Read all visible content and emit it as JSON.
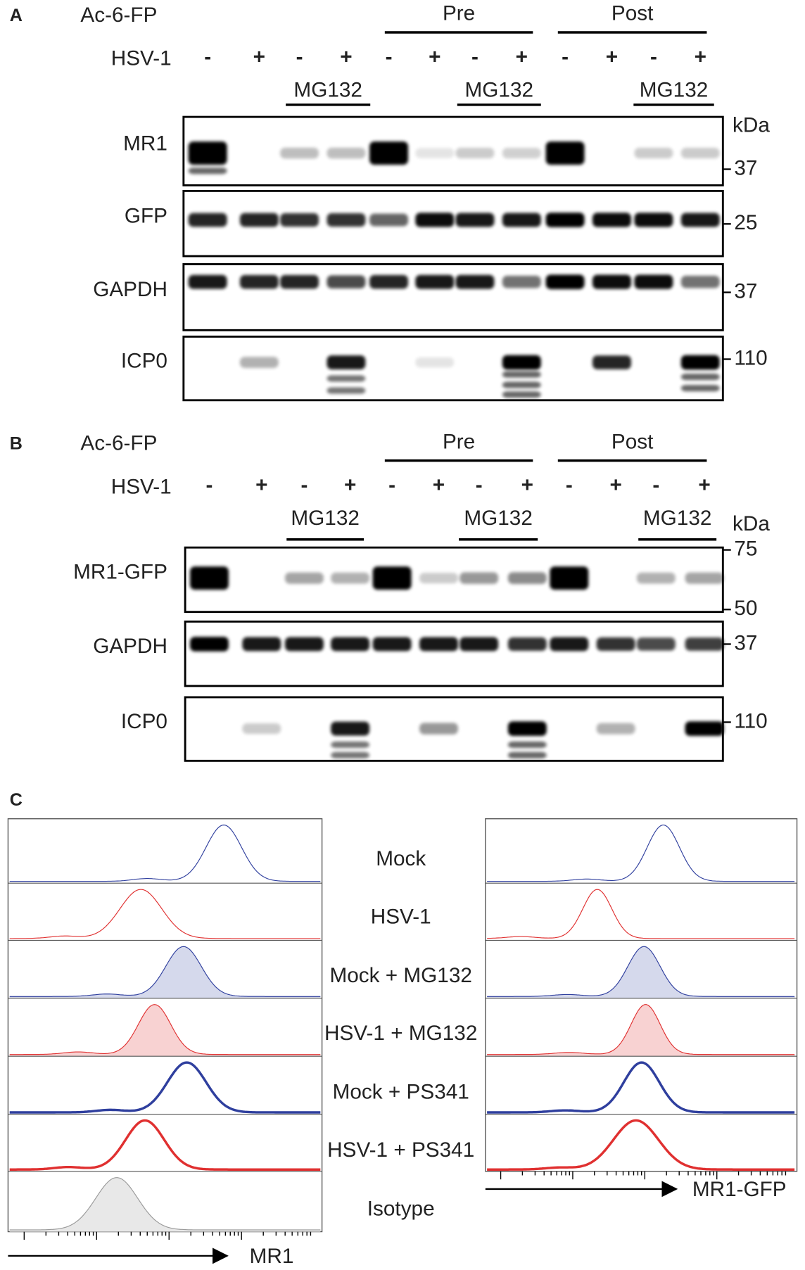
{
  "panels": [
    {
      "label": "A",
      "treatment": "Ac-6-FP",
      "groups": [
        "Pre",
        "Post"
      ],
      "infection": "HSV-1",
      "signs": [
        "-",
        "+",
        "-",
        "+",
        "-",
        "+",
        "-",
        "+",
        "-",
        "+",
        "-",
        "+"
      ],
      "drug_labels": [
        "MG132",
        "MG132",
        "MG132"
      ],
      "unit": "kDa",
      "blots": [
        {
          "name": "MR1",
          "markers": [
            "37"
          ]
        },
        {
          "name": "GFP",
          "markers": [
            "25"
          ]
        },
        {
          "name": "GAPDH",
          "markers": [
            "37"
          ]
        },
        {
          "name": "ICP0",
          "markers": [
            "110"
          ]
        }
      ]
    },
    {
      "label": "B",
      "treatment": "Ac-6-FP",
      "groups": [
        "Pre",
        "Post"
      ],
      "infection": "HSV-1",
      "signs": [
        "-",
        "+",
        "-",
        "+",
        "-",
        "+",
        "-",
        "+",
        "-",
        "+",
        "-",
        "+"
      ],
      "drug_labels": [
        "MG132",
        "MG132",
        "MG132"
      ],
      "unit": "kDa",
      "blots": [
        {
          "name": "MR1-GFP",
          "markers": [
            "75",
            "50"
          ]
        },
        {
          "name": "GAPDH",
          "markers": [
            "37"
          ]
        },
        {
          "name": "ICP0",
          "markers": [
            "110"
          ]
        }
      ]
    }
  ],
  "panel_c": {
    "label": "C",
    "conditions": [
      "Mock",
      "HSV-1",
      "Mock + MG132",
      "HSV-1 + MG132",
      "Mock + PS341",
      "HSV-1 + PS341",
      "Isotype"
    ],
    "left_axis": "MR1",
    "right_axis": "MR1-GFP"
  }
}
